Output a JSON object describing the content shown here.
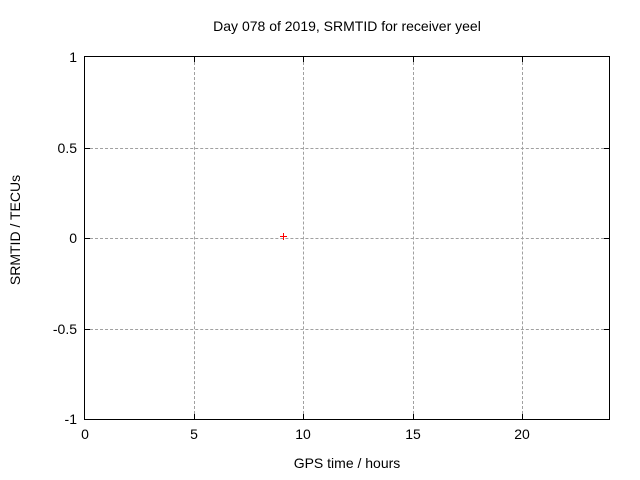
{
  "chart_data": {
    "type": "scatter",
    "title": "Day 078 of 2019, SRMTID for receiver yeel",
    "xlabel": "GPS time / hours",
    "ylabel": "SRMTID / TECUs",
    "xlim": [
      0,
      24
    ],
    "ylim": [
      -1,
      1
    ],
    "xticks": [
      0,
      5,
      10,
      15,
      20
    ],
    "yticks": [
      -1,
      -0.5,
      0,
      0.5,
      1
    ],
    "grid": true,
    "legend": "none",
    "series": [
      {
        "name": "SRMTID",
        "marker": "plus",
        "color": "#ff0000",
        "points": [
          {
            "x": 9.05,
            "y": 0.01
          }
        ]
      }
    ],
    "colors": {
      "background": "#ffffff",
      "text": "#000000",
      "border": "#000000",
      "grid": "#a0a0a0",
      "marker": "#ff0000"
    }
  }
}
